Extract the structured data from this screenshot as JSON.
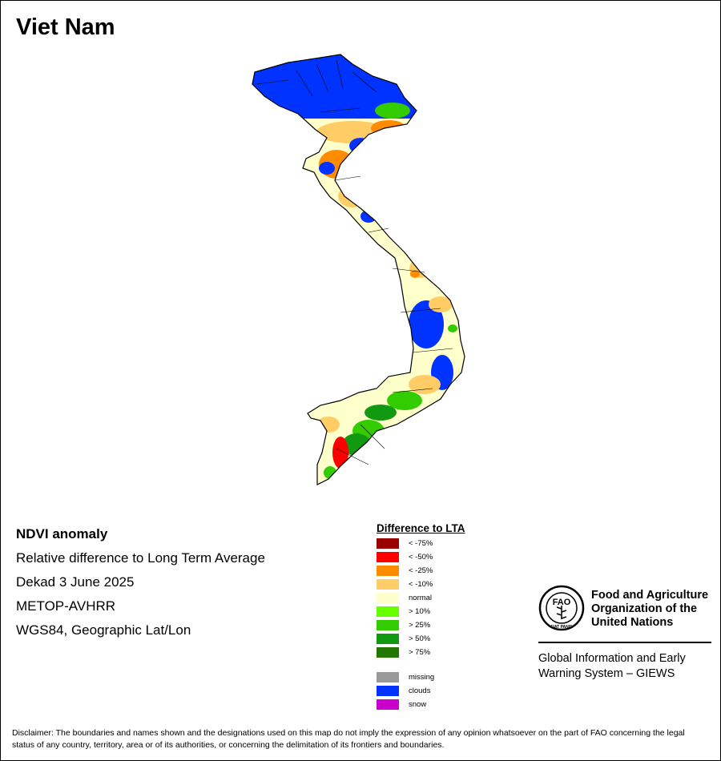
{
  "title": "Viet Nam",
  "info_lines": [
    "NDVI anomaly",
    "Relative difference to Long Term Average",
    "Dekad 3 June 2025",
    "METOP-AVHRR",
    "WGS84, Geographic Lat/Lon"
  ],
  "legend": {
    "title": "Difference to LTA",
    "classes": [
      {
        "label": "< -75%",
        "color": "#990000"
      },
      {
        "label": "< -50%",
        "color": "#ff0000"
      },
      {
        "label": "< -25%",
        "color": "#ff8c00"
      },
      {
        "label": "< -10%",
        "color": "#ffcc66"
      },
      {
        "label": "normal",
        "color": "#ffffcc"
      },
      {
        "label": "> 10%",
        "color": "#66ff00"
      },
      {
        "label": "> 25%",
        "color": "#33cc00"
      },
      {
        "label": "> 50%",
        "color": "#119911"
      },
      {
        "label": "> 75%",
        "color": "#227700"
      }
    ],
    "extra": [
      {
        "label": "missing",
        "color": "#999999"
      },
      {
        "label": "clouds",
        "color": "#0033ff"
      },
      {
        "label": "snow",
        "color": "#cc00cc"
      }
    ]
  },
  "organization": {
    "logo_text": "FAO",
    "logo_motto": "FIAT PANIS",
    "name_lines": [
      "Food and Agriculture",
      "Organization of the",
      "United Nations"
    ],
    "system_lines": [
      "Global Information and Early",
      "Warning System – GIEWS"
    ]
  },
  "disclaimer": "Disclaimer: The boundaries and names shown and the designations used on this map do not imply the expression of any opinion whatsoever on the part of FAO concerning the legal status of any country, territory, area or of its authorities, or concerning the delimitation of its frontiers and boundaries."
}
